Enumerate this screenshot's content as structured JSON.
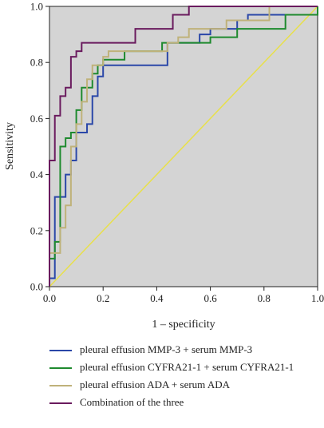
{
  "chart_data": {
    "type": "line",
    "xlabel": "1 – specificity",
    "ylabel": "Sensitivity",
    "xlim": [
      0,
      1
    ],
    "ylim": [
      0,
      1
    ],
    "x_ticks": [
      "0.0",
      "0.2",
      "0.4",
      "0.6",
      "0.8",
      "1.0"
    ],
    "y_ticks": [
      "0.0",
      "0.2",
      "0.4",
      "0.6",
      "0.8",
      "1.0"
    ],
    "background": "#d4d4d4",
    "grid": false,
    "legend_position": "bottom",
    "reference_line": {
      "color": "#e8e04a",
      "points": [
        [
          0,
          0
        ],
        [
          1,
          1
        ]
      ]
    },
    "series": [
      {
        "name": "pleural effusion MMP-3 + serum MMP-3",
        "color": "#2a47a8",
        "points": [
          [
            0,
            0
          ],
          [
            0,
            0.03
          ],
          [
            0.02,
            0.03
          ],
          [
            0.02,
            0.32
          ],
          [
            0.06,
            0.32
          ],
          [
            0.06,
            0.4
          ],
          [
            0.08,
            0.4
          ],
          [
            0.08,
            0.45
          ],
          [
            0.1,
            0.45
          ],
          [
            0.1,
            0.55
          ],
          [
            0.14,
            0.55
          ],
          [
            0.14,
            0.58
          ],
          [
            0.16,
            0.58
          ],
          [
            0.16,
            0.68
          ],
          [
            0.18,
            0.68
          ],
          [
            0.18,
            0.75
          ],
          [
            0.2,
            0.75
          ],
          [
            0.2,
            0.79
          ],
          [
            0.44,
            0.79
          ],
          [
            0.44,
            0.87
          ],
          [
            0.56,
            0.87
          ],
          [
            0.56,
            0.9
          ],
          [
            0.6,
            0.9
          ],
          [
            0.6,
            0.92
          ],
          [
            0.7,
            0.92
          ],
          [
            0.7,
            0.95
          ],
          [
            0.74,
            0.95
          ],
          [
            0.74,
            0.97
          ],
          [
            1,
            0.97
          ],
          [
            1,
            1
          ]
        ]
      },
      {
        "name": "pleural effusion CYFRA21-1 + serum CYFRA21-1",
        "color": "#1e8a2e",
        "points": [
          [
            0,
            0
          ],
          [
            0,
            0.1
          ],
          [
            0.02,
            0.1
          ],
          [
            0.02,
            0.16
          ],
          [
            0.04,
            0.16
          ],
          [
            0.04,
            0.5
          ],
          [
            0.06,
            0.5
          ],
          [
            0.06,
            0.53
          ],
          [
            0.08,
            0.53
          ],
          [
            0.08,
            0.55
          ],
          [
            0.1,
            0.55
          ],
          [
            0.1,
            0.63
          ],
          [
            0.12,
            0.63
          ],
          [
            0.12,
            0.71
          ],
          [
            0.16,
            0.71
          ],
          [
            0.16,
            0.76
          ],
          [
            0.18,
            0.76
          ],
          [
            0.18,
            0.79
          ],
          [
            0.2,
            0.79
          ],
          [
            0.2,
            0.81
          ],
          [
            0.28,
            0.81
          ],
          [
            0.28,
            0.84
          ],
          [
            0.42,
            0.84
          ],
          [
            0.42,
            0.87
          ],
          [
            0.6,
            0.87
          ],
          [
            0.6,
            0.89
          ],
          [
            0.7,
            0.89
          ],
          [
            0.7,
            0.92
          ],
          [
            0.88,
            0.92
          ],
          [
            0.88,
            0.97
          ],
          [
            1,
            0.97
          ],
          [
            1,
            1
          ]
        ]
      },
      {
        "name": "pleural effusion ADA + serum ADA",
        "color": "#bfb27a",
        "points": [
          [
            0,
            0
          ],
          [
            0,
            0.12
          ],
          [
            0.04,
            0.12
          ],
          [
            0.04,
            0.21
          ],
          [
            0.06,
            0.21
          ],
          [
            0.06,
            0.29
          ],
          [
            0.08,
            0.29
          ],
          [
            0.08,
            0.5
          ],
          [
            0.1,
            0.5
          ],
          [
            0.1,
            0.58
          ],
          [
            0.12,
            0.58
          ],
          [
            0.12,
            0.66
          ],
          [
            0.14,
            0.66
          ],
          [
            0.14,
            0.74
          ],
          [
            0.16,
            0.74
          ],
          [
            0.16,
            0.79
          ],
          [
            0.2,
            0.79
          ],
          [
            0.2,
            0.82
          ],
          [
            0.22,
            0.82
          ],
          [
            0.22,
            0.84
          ],
          [
            0.44,
            0.84
          ],
          [
            0.44,
            0.87
          ],
          [
            0.48,
            0.87
          ],
          [
            0.48,
            0.89
          ],
          [
            0.52,
            0.89
          ],
          [
            0.52,
            0.92
          ],
          [
            0.66,
            0.92
          ],
          [
            0.66,
            0.95
          ],
          [
            0.82,
            0.95
          ],
          [
            0.82,
            1
          ],
          [
            1,
            1
          ]
        ]
      },
      {
        "name": "Combination of the three",
        "color": "#6a1b5e",
        "points": [
          [
            0,
            0
          ],
          [
            0,
            0.45
          ],
          [
            0.02,
            0.45
          ],
          [
            0.02,
            0.61
          ],
          [
            0.04,
            0.61
          ],
          [
            0.04,
            0.68
          ],
          [
            0.06,
            0.68
          ],
          [
            0.06,
            0.71
          ],
          [
            0.08,
            0.71
          ],
          [
            0.08,
            0.82
          ],
          [
            0.1,
            0.82
          ],
          [
            0.1,
            0.84
          ],
          [
            0.12,
            0.84
          ],
          [
            0.12,
            0.87
          ],
          [
            0.32,
            0.87
          ],
          [
            0.32,
            0.92
          ],
          [
            0.46,
            0.92
          ],
          [
            0.46,
            0.97
          ],
          [
            0.52,
            0.97
          ],
          [
            0.52,
            1
          ],
          [
            1,
            1
          ]
        ]
      }
    ]
  }
}
